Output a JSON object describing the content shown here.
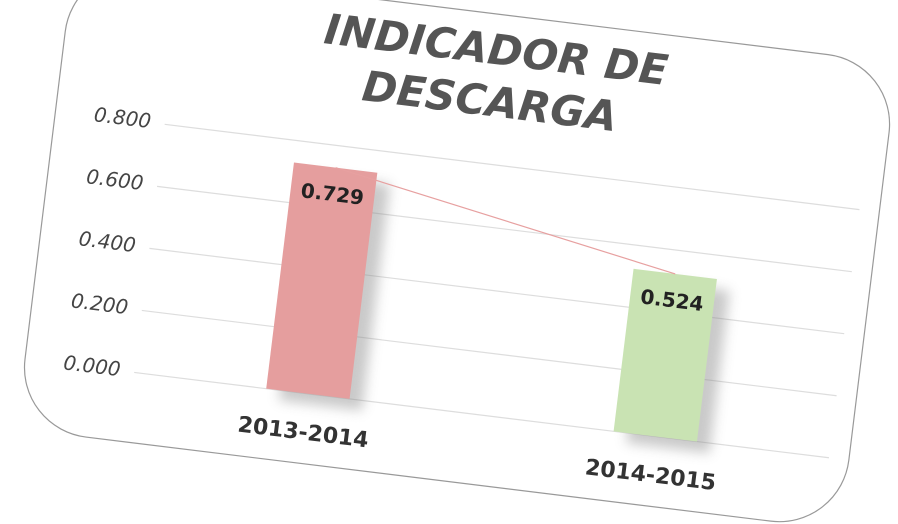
{
  "chart_data": {
    "type": "bar",
    "title": "INDICADOR DE DESCARGA",
    "categories": [
      "2013-2014",
      "2014-2015"
    ],
    "values": [
      0.729,
      0.524
    ],
    "colors": [
      "#e59e9e",
      "#c9e3b3"
    ],
    "line_color": "#e7a0a0",
    "ylim": [
      0,
      0.8
    ],
    "yticks": [
      {
        "value": 0,
        "label": "0.000"
      },
      {
        "value": 0.2,
        "label": "0.200"
      },
      {
        "value": 0.4,
        "label": "0.400"
      },
      {
        "value": 0.6,
        "label": "0.600"
      },
      {
        "value": 0.8,
        "label": "0.800"
      }
    ],
    "grid": true
  }
}
